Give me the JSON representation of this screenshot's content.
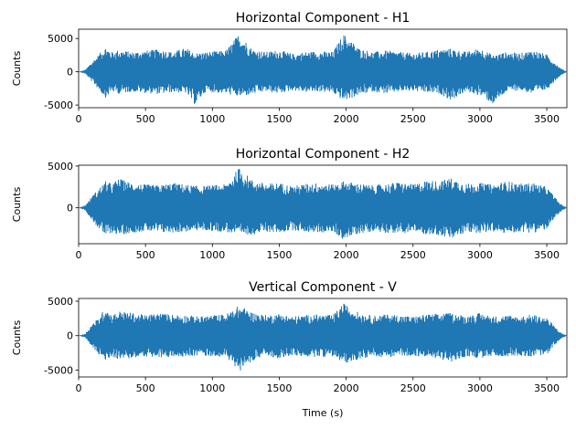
{
  "chart_data": [
    {
      "type": "line",
      "title": "Horizontal Component - H1",
      "xlabel": "",
      "ylabel": "Counts",
      "xlim": [
        0,
        3650
      ],
      "ylim": [
        -5400,
        6400
      ],
      "xticks": [
        0,
        500,
        1000,
        1500,
        2000,
        2500,
        3000,
        3500
      ],
      "yticks": [
        -5000,
        0,
        5000
      ],
      "color": "#1f77b4",
      "series": [
        {
          "x": [
            0,
            50,
            100,
            150,
            200,
            250,
            300,
            400,
            500,
            600,
            700,
            800,
            870,
            950,
            1100,
            1200,
            1300,
            1400,
            1500,
            1600,
            1700,
            1800,
            1900,
            1980,
            2100,
            2200,
            2300,
            2400,
            2500,
            2600,
            2700,
            2780,
            2900,
            3000,
            3100,
            3200,
            3300,
            3400,
            3500,
            3600,
            3650
          ],
          "upper": [
            0,
            300,
            1500,
            2600,
            3800,
            3000,
            3300,
            3000,
            3200,
            3400,
            3000,
            3600,
            2800,
            3000,
            3200,
            5800,
            3400,
            3000,
            3300,
            2700,
            3000,
            3100,
            3000,
            5700,
            3500,
            3000,
            3200,
            3000,
            2800,
            3000,
            3400,
            3500,
            3000,
            3600,
            2500,
            3000,
            2800,
            3300,
            2600,
            600,
            0
          ],
          "lower": [
            0,
            -300,
            -1500,
            -2700,
            -3900,
            -3000,
            -3300,
            -3000,
            -3200,
            -3400,
            -3100,
            -3200,
            -5000,
            -3000,
            -3300,
            -3800,
            -3400,
            -3000,
            -3300,
            -2800,
            -3100,
            -3000,
            -3200,
            -4400,
            -3500,
            -3000,
            -3300,
            -3000,
            -2900,
            -3200,
            -3300,
            -4300,
            -3000,
            -3600,
            -4900,
            -3000,
            -2800,
            -3400,
            -2700,
            -600,
            0
          ]
        }
      ]
    },
    {
      "type": "line",
      "title": "Horizontal Component - H2",
      "xlabel": "",
      "ylabel": "Counts",
      "xlim": [
        0,
        3650
      ],
      "ylim": [
        -4300,
        5100
      ],
      "xticks": [
        0,
        500,
        1000,
        1500,
        2000,
        2500,
        3000,
        3500
      ],
      "yticks": [
        0,
        5000
      ],
      "color": "#1f77b4",
      "series": [
        {
          "x": [
            0,
            50,
            100,
            150,
            200,
            250,
            300,
            400,
            500,
            600,
            700,
            800,
            900,
            1000,
            1100,
            1200,
            1300,
            1400,
            1500,
            1600,
            1700,
            1800,
            1900,
            1980,
            2100,
            2200,
            2300,
            2400,
            2500,
            2600,
            2700,
            2780,
            2900,
            3000,
            3100,
            3200,
            3300,
            3400,
            3500,
            3600,
            3650
          ],
          "upper": [
            0,
            300,
            1400,
            2300,
            3200,
            2900,
            3500,
            3000,
            2800,
            2700,
            3000,
            2800,
            2600,
            2700,
            2800,
            4800,
            3300,
            2900,
            3000,
            2600,
            2900,
            3000,
            2800,
            3200,
            2900,
            2700,
            2900,
            3100,
            2800,
            3300,
            3200,
            3600,
            2900,
            3000,
            2800,
            3200,
            2900,
            3000,
            2500,
            500,
            0
          ],
          "lower": [
            0,
            -300,
            -1500,
            -2500,
            -3400,
            -3000,
            -3300,
            -3000,
            -2800,
            -3000,
            -3000,
            -2900,
            -2700,
            -2800,
            -2900,
            -3300,
            -3200,
            -2900,
            -3000,
            -2700,
            -2900,
            -3000,
            -2900,
            -3800,
            -3100,
            -2800,
            -3000,
            -3100,
            -2900,
            -3200,
            -3300,
            -3800,
            -3000,
            -3000,
            -2900,
            -3100,
            -2900,
            -3000,
            -2600,
            -500,
            0
          ]
        }
      ]
    },
    {
      "type": "line",
      "title": "Vertical Component - V",
      "xlabel": "Time (s)",
      "ylabel": "Counts",
      "xlim": [
        0,
        3650
      ],
      "ylim": [
        -6000,
        5400
      ],
      "xticks": [
        0,
        500,
        1000,
        1500,
        2000,
        2500,
        3000,
        3500
      ],
      "yticks": [
        -5000,
        0,
        5000
      ],
      "color": "#1f77b4",
      "series": [
        {
          "x": [
            0,
            50,
            100,
            150,
            200,
            250,
            300,
            400,
            500,
            600,
            700,
            800,
            900,
            1000,
            1100,
            1200,
            1300,
            1400,
            1500,
            1600,
            1700,
            1800,
            1900,
            1980,
            2100,
            2200,
            2300,
            2400,
            2500,
            2600,
            2700,
            2780,
            2900,
            3000,
            3100,
            3200,
            3300,
            3400,
            3500,
            3600,
            3650
          ],
          "upper": [
            0,
            300,
            1700,
            2600,
            4200,
            3000,
            3600,
            3300,
            3000,
            3300,
            3100,
            3000,
            2800,
            3000,
            3100,
            4400,
            3400,
            3000,
            3200,
            2800,
            3000,
            3100,
            3000,
            4700,
            3300,
            2900,
            3100,
            3000,
            2800,
            3100,
            3200,
            3300,
            2900,
            3300,
            2800,
            3000,
            2800,
            3100,
            2600,
            500,
            0
          ],
          "lower": [
            0,
            -300,
            -1600,
            -2800,
            -3700,
            -3000,
            -3500,
            -3300,
            -3000,
            -3300,
            -3100,
            -3000,
            -2900,
            -3000,
            -3100,
            -5200,
            -3600,
            -3000,
            -3300,
            -2900,
            -3100,
            -3100,
            -3000,
            -4100,
            -3400,
            -3000,
            -3200,
            -3000,
            -2900,
            -3200,
            -3300,
            -4000,
            -3000,
            -3300,
            -3000,
            -3000,
            -2900,
            -3100,
            -2700,
            -500,
            0
          ]
        }
      ]
    }
  ]
}
